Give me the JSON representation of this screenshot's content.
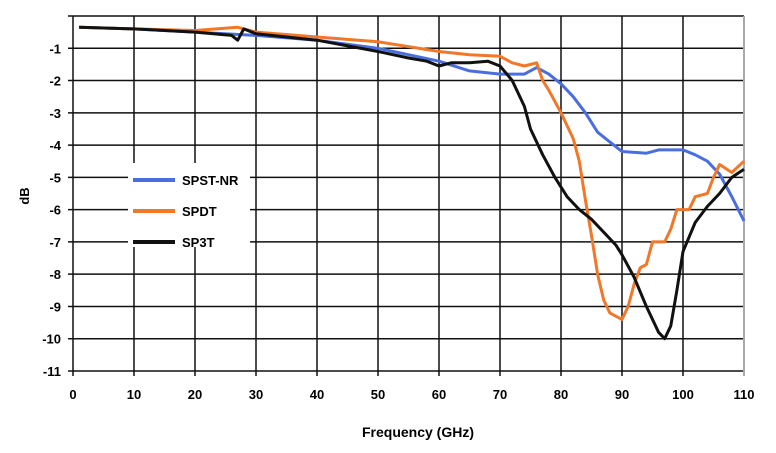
{
  "chart_data": {
    "type": "line",
    "title": "",
    "xlabel": "Frequency (GHz)",
    "ylabel": "dB",
    "xlim": [
      0,
      110
    ],
    "ylim": [
      -11,
      0
    ],
    "xticks": [
      0,
      10,
      20,
      30,
      40,
      50,
      60,
      70,
      80,
      90,
      100,
      110
    ],
    "yticks": [
      -1,
      -2,
      -3,
      -4,
      -5,
      -6,
      -7,
      -8,
      -9,
      -10,
      -11
    ],
    "grid": true,
    "legend_position": "left-middle",
    "series": [
      {
        "name": "SPST-NR",
        "color": "#4a6ee0",
        "x": [
          1,
          10,
          20,
          30,
          40,
          50,
          55,
          60,
          65,
          70,
          74,
          76,
          78,
          80,
          82,
          84,
          86,
          88,
          90,
          94,
          96,
          98,
          100,
          102,
          104,
          106,
          108,
          110
        ],
        "y": [
          -0.35,
          -0.4,
          -0.5,
          -0.6,
          -0.75,
          -1.0,
          -1.2,
          -1.4,
          -1.7,
          -1.8,
          -1.8,
          -1.6,
          -1.8,
          -2.1,
          -2.5,
          -3.0,
          -3.6,
          -3.9,
          -4.2,
          -4.25,
          -4.15,
          -4.15,
          -4.15,
          -4.3,
          -4.5,
          -4.9,
          -5.6,
          -6.35
        ]
      },
      {
        "name": "SPDT",
        "color": "#f07828",
        "x": [
          1,
          10,
          20,
          27,
          28,
          30,
          40,
          50,
          60,
          65,
          70,
          72,
          74,
          76,
          77,
          78,
          80,
          82,
          83,
          84,
          85,
          86,
          87,
          88,
          90,
          91,
          92,
          93,
          94,
          95,
          97,
          98,
          99,
          101,
          102,
          104,
          105,
          106,
          108,
          110
        ],
        "y": [
          -0.35,
          -0.4,
          -0.45,
          -0.35,
          -0.4,
          -0.5,
          -0.65,
          -0.8,
          -1.1,
          -1.2,
          -1.25,
          -1.45,
          -1.55,
          -1.45,
          -2.0,
          -2.3,
          -3.0,
          -3.8,
          -4.5,
          -5.7,
          -6.8,
          -8.0,
          -8.8,
          -9.2,
          -9.4,
          -9.0,
          -8.3,
          -7.8,
          -7.7,
          -7.0,
          -7.0,
          -6.6,
          -6.0,
          -6.0,
          -5.6,
          -5.5,
          -5.0,
          -4.6,
          -4.85,
          -4.5
        ]
      },
      {
        "name": "SP3T",
        "color": "#111111",
        "x": [
          1,
          10,
          20,
          26,
          27,
          28,
          30,
          40,
          50,
          55,
          58,
          60,
          62,
          65,
          68,
          70,
          72,
          74,
          75,
          77,
          79,
          81,
          83,
          85,
          87,
          89,
          90,
          92,
          94,
          96,
          97,
          98,
          99,
          100,
          102,
          104,
          106,
          108,
          110
        ],
        "y": [
          -0.35,
          -0.4,
          -0.5,
          -0.6,
          -0.75,
          -0.4,
          -0.55,
          -0.75,
          -1.1,
          -1.3,
          -1.4,
          -1.55,
          -1.45,
          -1.45,
          -1.4,
          -1.55,
          -2.0,
          -2.8,
          -3.5,
          -4.3,
          -5.0,
          -5.6,
          -6.0,
          -6.3,
          -6.7,
          -7.1,
          -7.4,
          -8.1,
          -9.0,
          -9.8,
          -10.0,
          -9.6,
          -8.5,
          -7.3,
          -6.4,
          -5.9,
          -5.5,
          -5.0,
          -4.75
        ]
      }
    ]
  }
}
